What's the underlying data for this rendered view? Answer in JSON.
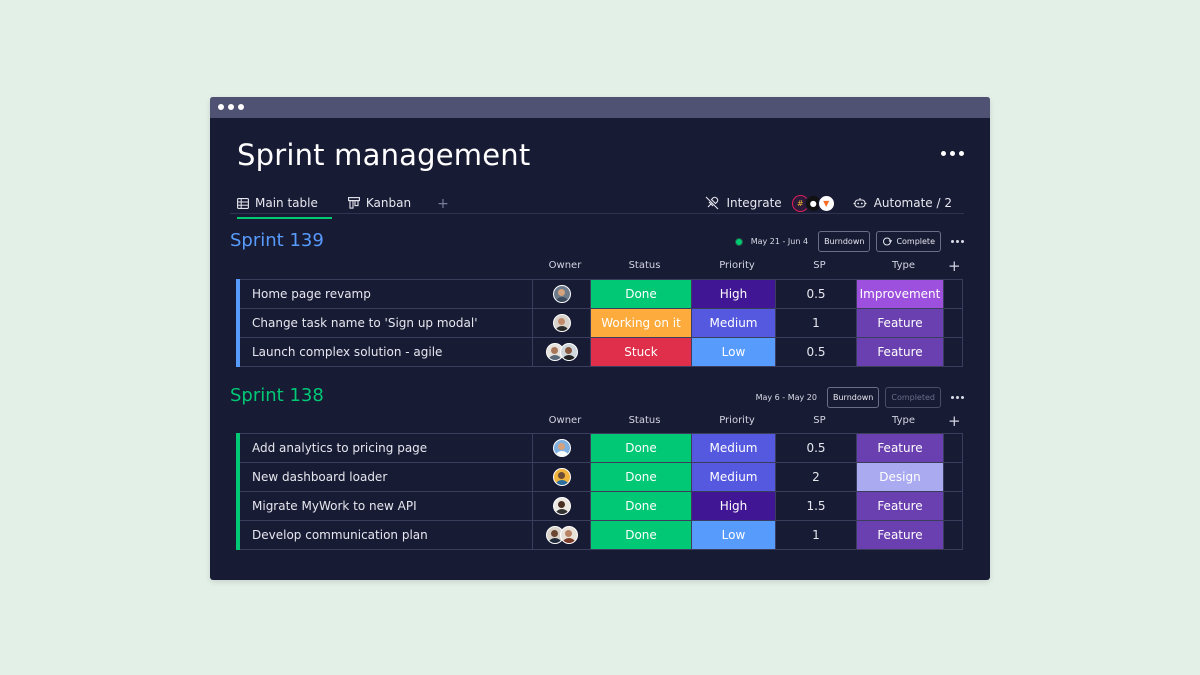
{
  "app": {
    "title": "Sprint management"
  },
  "tabs": [
    {
      "label": "Main table",
      "icon": "table-icon",
      "active": true
    },
    {
      "label": "Kanban",
      "icon": "kanban-icon",
      "active": false
    }
  ],
  "tab_add_label": "+",
  "toolbar": {
    "integrate_label": "Integrate",
    "integrate_icons": [
      "slack-icon",
      "github-icon",
      "gitlab-icon"
    ],
    "automate_label": "Automate / 2"
  },
  "columns": {
    "owner": "Owner",
    "status": "Status",
    "priority": "Priority",
    "sp": "SP",
    "type": "Type",
    "add": "+"
  },
  "colors": {
    "done": "#00c875",
    "working": "#fdab3d",
    "stuck": "#df2f4a",
    "high": "#401694",
    "medium": "#5559df",
    "low": "#579bfc",
    "improvement": "#9d50dd",
    "feature": "#6a3fb0",
    "design": "#a9aaf0",
    "sprint139": "#579bfc",
    "sprint138": "#00c875"
  },
  "groups": [
    {
      "title": "Sprint 139",
      "date_range": "May 21 - Jun 4",
      "burndown_label": "Burndown",
      "complete_label": "Complete",
      "rows": [
        {
          "name": "Home page revamp",
          "status": "Done",
          "priority": "High",
          "sp": "0.5",
          "type": "Improvement"
        },
        {
          "name": "Change task name to 'Sign up modal'",
          "status": "Working on it",
          "priority": "Medium",
          "sp": "1",
          "type": "Feature"
        },
        {
          "name": "Launch complex solution - agile",
          "status": "Stuck",
          "priority": "Low",
          "sp": "0.5",
          "type": "Feature"
        }
      ]
    },
    {
      "title": "Sprint 138",
      "date_range": "May 6 - May 20",
      "burndown_label": "Burndown",
      "complete_label": "Completed",
      "rows": [
        {
          "name": "Add analytics to pricing page",
          "status": "Done",
          "priority": "Medium",
          "sp": "0.5",
          "type": "Feature"
        },
        {
          "name": "New dashboard loader",
          "status": "Done",
          "priority": "Medium",
          "sp": "2",
          "type": "Design"
        },
        {
          "name": "Migrate MyWork to new API",
          "status": "Done",
          "priority": "High",
          "sp": "1.5",
          "type": "Feature"
        },
        {
          "name": "Develop communication plan",
          "status": "Done",
          "priority": "Low",
          "sp": "1",
          "type": "Feature"
        }
      ]
    }
  ]
}
